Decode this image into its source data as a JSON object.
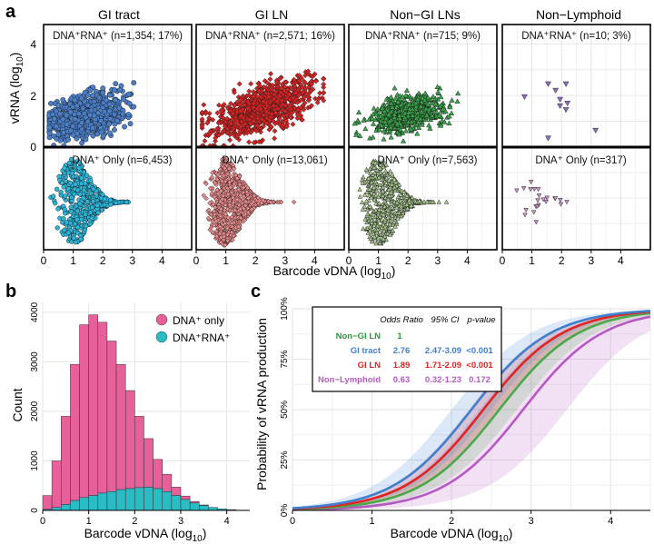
{
  "figure": {
    "panel_labels": [
      "a",
      "b",
      "c"
    ]
  },
  "chart_data": [
    {
      "panel": "a",
      "type": "scatter",
      "xlabel": "Barcode vDNA (log",
      "xlabel_sub": "10",
      "xlabel_end": ")",
      "ylabel": "vRNA (log",
      "ylabel_sub": "10",
      "ylabel_end": ")",
      "xlim": [
        0,
        5
      ],
      "ylim": [
        0,
        5
      ],
      "xticks": [
        0,
        1,
        2,
        3,
        4
      ],
      "yticks": [
        0,
        2,
        4
      ],
      "columns": [
        {
          "title": "GI tract",
          "color": "#4a7fc8",
          "marker": "circle",
          "top_label": "DNA⁺RNA⁺ (n=1,354; 17%)",
          "bottom_label": "DNA⁺ Only (n=6,453)",
          "bottom_color": "#2bb5d8",
          "top_n": 1354,
          "bottom_n": 6453,
          "x_center": 1.4,
          "x_spread": 1.6,
          "y_center": 1.2,
          "y_spread": 0.7
        },
        {
          "title": "GI LN",
          "color": "#d42424",
          "marker": "diamond",
          "top_label": "DNA⁺RNA⁺ (n=2,571; 16%)",
          "bottom_label": "DNA⁺ Only (n=13,061)",
          "bottom_color": "#e98a8a",
          "top_n": 2571,
          "bottom_n": 13061,
          "x_center": 2.3,
          "x_spread": 2.2,
          "y_center": 1.5,
          "y_spread": 0.8
        },
        {
          "title": "Non−GI LNs",
          "color": "#3aa64a",
          "marker": "triangle",
          "top_label": "DNA⁺RNA⁺ (n=715; 9%)",
          "bottom_label": "DNA⁺ Only (n=7,563)",
          "bottom_color": "#a8c890",
          "top_n": 715,
          "bottom_n": 7563,
          "x_center": 2.0,
          "x_spread": 1.6,
          "y_center": 1.3,
          "y_spread": 0.6
        },
        {
          "title": "Non−Lymphoid",
          "color": "#8b6cc0",
          "marker": "triangle-down",
          "top_label": "DNA⁺RNA⁺ (n=10; 3%)",
          "bottom_label": "DNA⁺ Only (n=317)",
          "bottom_color": "#c88fc4",
          "top_n": 10,
          "bottom_n": 317,
          "x_center": 1.5,
          "x_spread": 1.2,
          "y_center": 1.4,
          "y_spread": 0.6,
          "points": [
            [
              0.75,
              1.95
            ],
            [
              1.55,
              2.45
            ],
            [
              1.8,
              2.2
            ],
            [
              2.15,
              2.45
            ],
            [
              1.95,
              1.85
            ],
            [
              2.15,
              1.45
            ],
            [
              1.55,
              0.35
            ],
            [
              3.15,
              0.65
            ],
            [
              1.95,
              1.6
            ],
            [
              2.2,
              1.7
            ]
          ]
        }
      ]
    },
    {
      "panel": "b",
      "type": "bar",
      "stacked": true,
      "xlabel": "Barcode vDNA (log",
      "xlabel_sub": "10",
      "xlabel_end": ")",
      "ylabel": "Count",
      "xlim": [
        0,
        4.5
      ],
      "ylim": [
        0,
        4200
      ],
      "xticks": [
        0,
        1,
        2,
        3,
        4
      ],
      "yticks": [
        0,
        1000,
        2000,
        3000,
        4000
      ],
      "bin_width": 0.2,
      "bin_starts": [
        0.0,
        0.2,
        0.4,
        0.6,
        0.8,
        1.0,
        1.2,
        1.4,
        1.6,
        1.8,
        2.0,
        2.2,
        2.4,
        2.6,
        2.8,
        3.0,
        3.2,
        3.4,
        3.6,
        3.8,
        4.0,
        4.2
      ],
      "series": [
        {
          "name": "DNA⁺RNA⁺",
          "color": "#2abcc4",
          "values": [
            20,
            60,
            120,
            200,
            260,
            300,
            350,
            380,
            420,
            440,
            460,
            470,
            440,
            380,
            300,
            220,
            150,
            100,
            60,
            30,
            15,
            5
          ]
        },
        {
          "name": "DNA⁺ only",
          "color": "#e8609a",
          "totals": [
            300,
            1000,
            1900,
            2950,
            3750,
            3950,
            3800,
            3420,
            2950,
            2420,
            1900,
            1450,
            1030,
            730,
            470,
            290,
            180,
            110,
            60,
            30,
            15,
            5
          ]
        }
      ],
      "legend": [
        {
          "label": "DNA⁺ only",
          "color": "#e8609a"
        },
        {
          "label": "DNA⁺RNA⁺",
          "color": "#2abcc4"
        }
      ]
    },
    {
      "panel": "c",
      "type": "line",
      "xlabel": "Barcode vDNA (log",
      "xlabel_sub": "10",
      "xlabel_end": ")",
      "ylabel": "Probability of vRNA production",
      "xlim": [
        0,
        4.5
      ],
      "ylim": [
        0,
        1
      ],
      "xticks": [
        0,
        1,
        2,
        3,
        4
      ],
      "yticks": [
        "0%",
        "25%",
        "50%",
        "75%",
        "100%"
      ],
      "series": [
        {
          "name": "GI tract",
          "color": "#3f7fd0",
          "x50": 2.25,
          "slope": 2.0,
          "ci": 0.25
        },
        {
          "name": "GI LN",
          "color": "#e02424",
          "x50": 2.4,
          "slope": 2.0,
          "ci": 0.18
        },
        {
          "name": "Non−GI LN",
          "color": "#4aa84a",
          "x50": 2.6,
          "slope": 2.0,
          "ci": 0.22
        },
        {
          "name": "Non−Lymphoid",
          "color": "#b659c3",
          "x50": 2.9,
          "slope": 2.0,
          "ci": 0.55
        }
      ],
      "table": {
        "headers": [
          "Odds Ratio",
          "95% CI",
          "p-value"
        ],
        "rows": [
          {
            "name": "Non−GI LN",
            "color": "#2a9a3a",
            "odds": "1",
            "ci": "",
            "p": ""
          },
          {
            "name": "GI tract",
            "color": "#3f7fd0",
            "odds": "2.76",
            "ci": "2.47-3.09",
            "p": "<0.001"
          },
          {
            "name": "GI LN",
            "color": "#e02424",
            "odds": "1.89",
            "ci": "1.71-2.09",
            "p": "<0.001"
          },
          {
            "name": "Non−Lymphoid",
            "color": "#b659c3",
            "odds": "0.63",
            "ci": "0.32-1.23",
            "p": "0.172"
          }
        ]
      }
    }
  ]
}
